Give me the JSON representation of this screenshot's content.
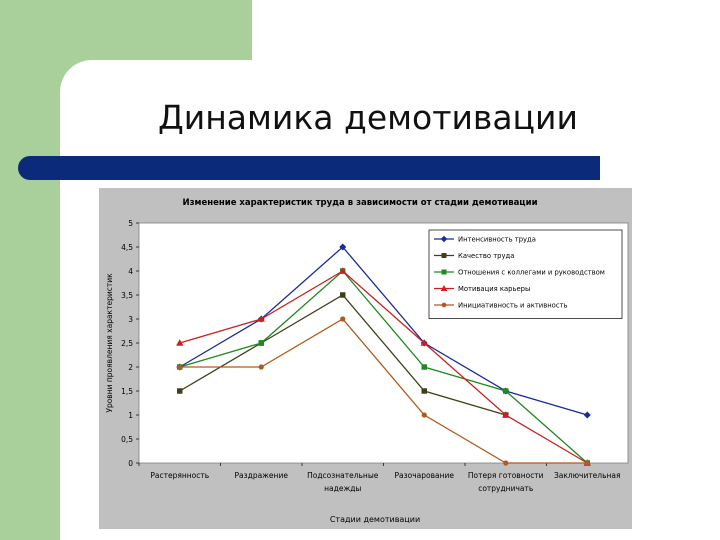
{
  "slide": {
    "title": "Динамика демотивации"
  },
  "colors": {
    "left_band": "#a9d09a",
    "title_bar": "#0b2a7a",
    "chart_bg": "#c0c0c0",
    "plot_bg": "#ffffff"
  },
  "chart_data": {
    "type": "line",
    "title": "Изменение характеристик труда в зависимости от стадии демотивации",
    "xlabel": "Стадии демотивации",
    "ylabel": "Уровни проявления характеристик",
    "ylim": [
      0,
      5
    ],
    "y_ticks": [
      "0",
      "0,5",
      "1",
      "1,5",
      "2",
      "2,5",
      "3",
      "3,5",
      "4",
      "4,5",
      "5"
    ],
    "categories": [
      [
        "Растерянность"
      ],
      [
        "Раздражение"
      ],
      [
        "Подсознательные",
        "надежды"
      ],
      [
        "Разочарование"
      ],
      [
        "Потеря готовности",
        "сотрудничать"
      ],
      [
        "Заключительная"
      ]
    ],
    "legend_position": "top-right",
    "grid": false,
    "series": [
      {
        "name": "Интенсивность труда",
        "color": "#1a2a9c",
        "marker": "diamond",
        "values": [
          2,
          3,
          4.5,
          2.5,
          1.5,
          1
        ]
      },
      {
        "name": "Качество труда",
        "color": "#404018",
        "marker": "square",
        "values": [
          1.5,
          2.5,
          3.5,
          1.5,
          1,
          null
        ]
      },
      {
        "name": "Отношения с коллегами и руководством",
        "color": "#1e8a1e",
        "marker": "square",
        "values": [
          2,
          2.5,
          4,
          2,
          1.5,
          0
        ]
      },
      {
        "name": "Мотивация карьеры",
        "color": "#cc2020",
        "marker": "triangle",
        "values": [
          2.5,
          3,
          4,
          2.5,
          1,
          0
        ]
      },
      {
        "name": "Инициативность и активность",
        "color": "#b05a20",
        "marker": "circle",
        "values": [
          2,
          2,
          3,
          1,
          0,
          0
        ]
      }
    ]
  }
}
